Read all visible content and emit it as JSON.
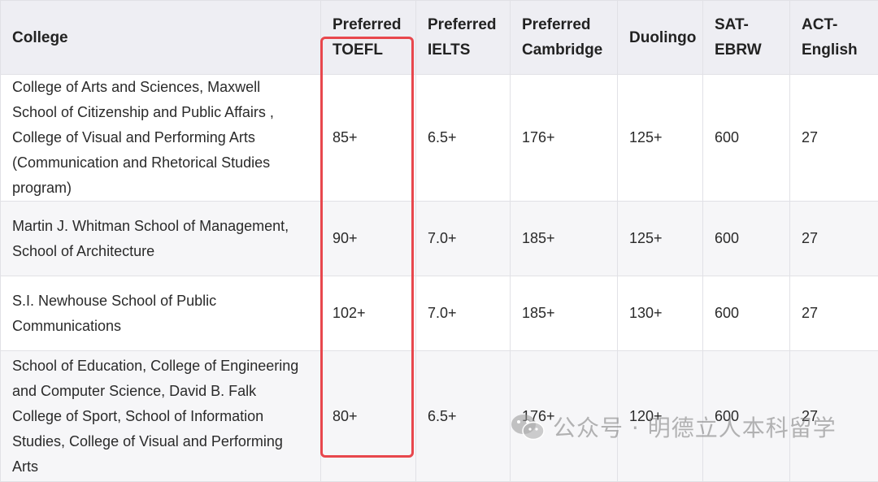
{
  "table": {
    "headers": [
      "College",
      "Preferred TOEFL",
      "Preferred IELTS",
      "Preferred Cambridge",
      "Duolingo",
      "SAT-EBRW",
      "ACT-English"
    ],
    "rows": [
      {
        "college": "College of Arts and Sciences, Maxwell School of Citizenship and Public Affairs , College of Visual and Performing Arts (Communication and Rhetorical Studies program)",
        "toefl": "85+",
        "ielts": "6.5+",
        "cambridge": "176+",
        "duolingo": "125+",
        "sat": "600",
        "act": "27"
      },
      {
        "college": "Martin J. Whitman School of Management, School of Architecture",
        "toefl": "90+",
        "ielts": "7.0+",
        "cambridge": "185+",
        "duolingo": "125+",
        "sat": "600",
        "act": "27"
      },
      {
        "college": "S.I. Newhouse School of Public Communications",
        "toefl": "102+",
        "ielts": "7.0+",
        "cambridge": "185+",
        "duolingo": "130+",
        "sat": "600",
        "act": "27"
      },
      {
        "college": "School of Education, College of Engineering and Computer Science, David B. Falk College of Sport, School of Information Studies, College of Visual and Performing Arts",
        "toefl": "80+",
        "ielts": "6.5+",
        "cambridge": "176+",
        "duolingo": "120+",
        "sat": "600",
        "act": "27"
      }
    ]
  },
  "highlight": {
    "color": "#e8474d"
  },
  "watermark": {
    "text": "公众号 · 明德立人本科留学",
    "icon": "wechat-icon"
  }
}
